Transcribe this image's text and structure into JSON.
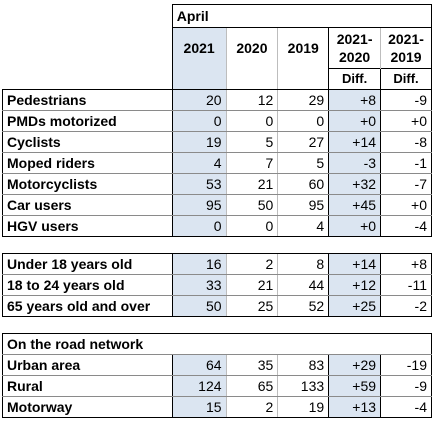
{
  "header": {
    "month": "April",
    "years": [
      "2021",
      "2020",
      "2019"
    ],
    "diff_cols": [
      {
        "line1": "2021-",
        "line2": "2020",
        "sub": "Diff."
      },
      {
        "line1": "2021-",
        "line2": "2019",
        "sub": "Diff."
      }
    ]
  },
  "groups": [
    {
      "rows": [
        {
          "label": "Pedestrians",
          "y2021": "20",
          "y2020": "12",
          "y2019": "29",
          "d2020": "+8",
          "d2019": "-9"
        },
        {
          "label": "PMDs motorized",
          "y2021": "0",
          "y2020": "0",
          "y2019": "0",
          "d2020": "+0",
          "d2019": "+0"
        },
        {
          "label": "Cyclists",
          "y2021": "19",
          "y2020": "5",
          "y2019": "27",
          "d2020": "+14",
          "d2019": "-8"
        },
        {
          "label": "Moped riders",
          "y2021": "4",
          "y2020": "7",
          "y2019": "5",
          "d2020": "-3",
          "d2019": "-1"
        },
        {
          "label": "Motorcyclists",
          "y2021": "53",
          "y2020": "21",
          "y2019": "60",
          "d2020": "+32",
          "d2019": "-7"
        },
        {
          "label": "Car users",
          "y2021": "95",
          "y2020": "50",
          "y2019": "95",
          "d2020": "+45",
          "d2019": "+0"
        },
        {
          "label": "HGV users",
          "y2021": "0",
          "y2020": "0",
          "y2019": "4",
          "d2020": "+0",
          "d2019": "-4"
        }
      ]
    },
    {
      "rows": [
        {
          "label": "Under 18 years old",
          "y2021": "16",
          "y2020": "2",
          "y2019": "8",
          "d2020": "+14",
          "d2019": "+8"
        },
        {
          "label": "18 to 24 years old",
          "y2021": "33",
          "y2020": "21",
          "y2019": "44",
          "d2020": "+12",
          "d2019": "-11"
        },
        {
          "label": "65 years old and over",
          "y2021": "50",
          "y2020": "25",
          "y2019": "52",
          "d2020": "+25",
          "d2019": "-2"
        }
      ]
    },
    {
      "title": "On the road network",
      "rows": [
        {
          "label": "Urban area",
          "y2021": "64",
          "y2020": "35",
          "y2019": "83",
          "d2020": "+29",
          "d2019": "-19"
        },
        {
          "label": "Rural",
          "y2021": "124",
          "y2020": "65",
          "y2019": "133",
          "d2020": "+59",
          "d2019": "-9"
        },
        {
          "label": "Motorway",
          "y2021": "15",
          "y2020": "2",
          "y2019": "19",
          "d2020": "+13",
          "d2019": "-4"
        }
      ]
    }
  ]
}
